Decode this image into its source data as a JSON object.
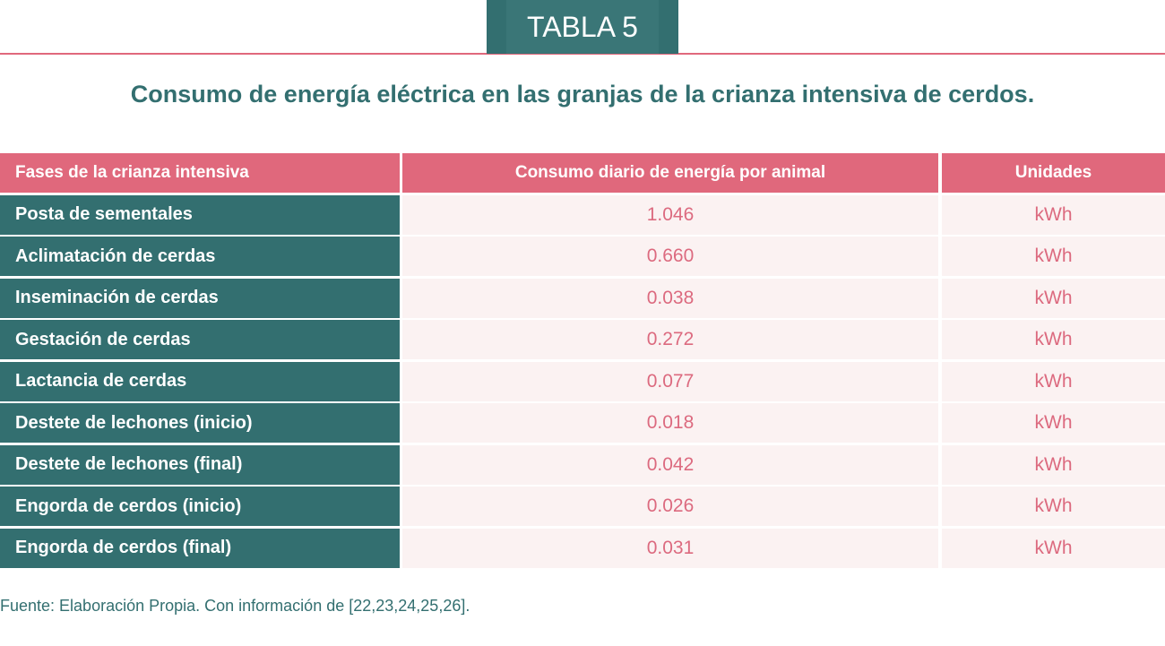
{
  "header": {
    "tab_label": "TABLA 5",
    "title": "Consumo de energía eléctrica en las granjas de la crianza intensiva de cerdos."
  },
  "table": {
    "columns": [
      "Fases de la crianza intensiva",
      "Consumo diario de energía por animal",
      "Unidades"
    ],
    "rows": [
      {
        "phase": "Posta de sementales",
        "value": "1.046",
        "unit": "kWh"
      },
      {
        "phase": "Aclimatación de cerdas",
        "value": "0.660",
        "unit": "kWh"
      },
      {
        "phase": "Inseminación de cerdas",
        "value": "0.038",
        "unit": "kWh"
      },
      {
        "phase": "Gestación de cerdas",
        "value": "0.272",
        "unit": "kWh"
      },
      {
        "phase": "Lactancia de cerdas",
        "value": "0.077",
        "unit": "kWh"
      },
      {
        "phase": "Destete de lechones (inicio)",
        "value": "0.018",
        "unit": "kWh"
      },
      {
        "phase": "Destete de lechones (final)",
        "value": "0.042",
        "unit": "kWh"
      },
      {
        "phase": "Engorda de cerdos (inicio)",
        "value": "0.026",
        "unit": "kWh"
      },
      {
        "phase": "Engorda de cerdos (final)",
        "value": "0.031",
        "unit": "kWh"
      }
    ]
  },
  "footer": {
    "source": "Fuente: Elaboración Propia. Con información de [22,23,24,25,26]."
  },
  "colors": {
    "teal": "#336f70",
    "pink": "#e0687c",
    "value_text": "#dc6a7f",
    "row_bg": "#fbf2f2"
  }
}
